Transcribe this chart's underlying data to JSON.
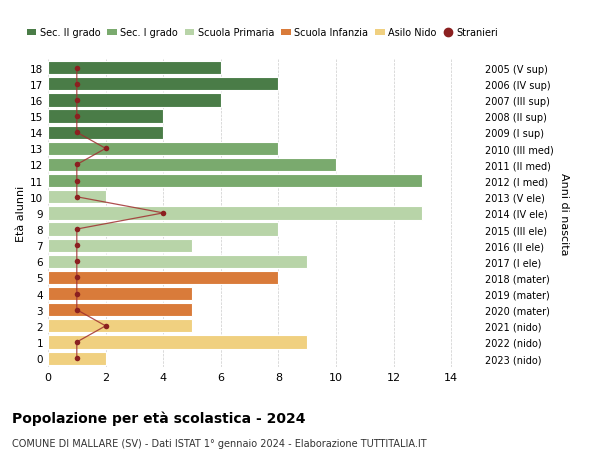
{
  "ages": [
    18,
    17,
    16,
    15,
    14,
    13,
    12,
    11,
    10,
    9,
    8,
    7,
    6,
    5,
    4,
    3,
    2,
    1,
    0
  ],
  "years": [
    "2005 (V sup)",
    "2006 (IV sup)",
    "2007 (III sup)",
    "2008 (II sup)",
    "2009 (I sup)",
    "2010 (III med)",
    "2011 (II med)",
    "2012 (I med)",
    "2013 (V ele)",
    "2014 (IV ele)",
    "2015 (III ele)",
    "2016 (II ele)",
    "2017 (I ele)",
    "2018 (mater)",
    "2019 (mater)",
    "2020 (mater)",
    "2021 (nido)",
    "2022 (nido)",
    "2023 (nido)"
  ],
  "bar_values": [
    6,
    8,
    6,
    4,
    4,
    8,
    10,
    13,
    2,
    13,
    8,
    5,
    9,
    8,
    5,
    5,
    5,
    9,
    2
  ],
  "bar_colors": [
    "#4a7c47",
    "#4a7c47",
    "#4a7c47",
    "#4a7c47",
    "#4a7c47",
    "#7aaa6e",
    "#7aaa6e",
    "#7aaa6e",
    "#b8d4a8",
    "#b8d4a8",
    "#b8d4a8",
    "#b8d4a8",
    "#b8d4a8",
    "#d97b3a",
    "#d97b3a",
    "#d97b3a",
    "#f0d080",
    "#f0d080",
    "#f0d080"
  ],
  "stranieri_values": [
    1,
    1,
    1,
    1,
    1,
    2,
    1,
    1,
    1,
    4,
    1,
    1,
    1,
    1,
    1,
    1,
    2,
    1,
    1
  ],
  "stranieri_positions": [
    18,
    17,
    16,
    15,
    14,
    13,
    12,
    11,
    10,
    9,
    8,
    7,
    6,
    5,
    4,
    3,
    2,
    1,
    0
  ],
  "title": "Popolazione per età scolastica - 2024",
  "subtitle": "COMUNE DI MALLARE (SV) - Dati ISTAT 1° gennaio 2024 - Elaborazione TUTTITALIA.IT",
  "ylabel_left": "Età alunni",
  "ylabel_right": "Anni di nascita",
  "xlim": [
    0,
    15
  ],
  "xticks": [
    0,
    2,
    4,
    6,
    8,
    10,
    12,
    14
  ],
  "legend_labels": [
    "Sec. II grado",
    "Sec. I grado",
    "Scuola Primaria",
    "Scuola Infanzia",
    "Asilo Nido",
    "Stranieri"
  ],
  "legend_colors": [
    "#4a7c47",
    "#7aaa6e",
    "#b8d4a8",
    "#d97b3a",
    "#f0d080",
    "#c0392b"
  ],
  "bar_height": 0.82,
  "grid_color": "#cccccc",
  "bg_color": "#ffffff",
  "stranieri_color": "#8b2020",
  "stranieri_line_color": "#a03030"
}
